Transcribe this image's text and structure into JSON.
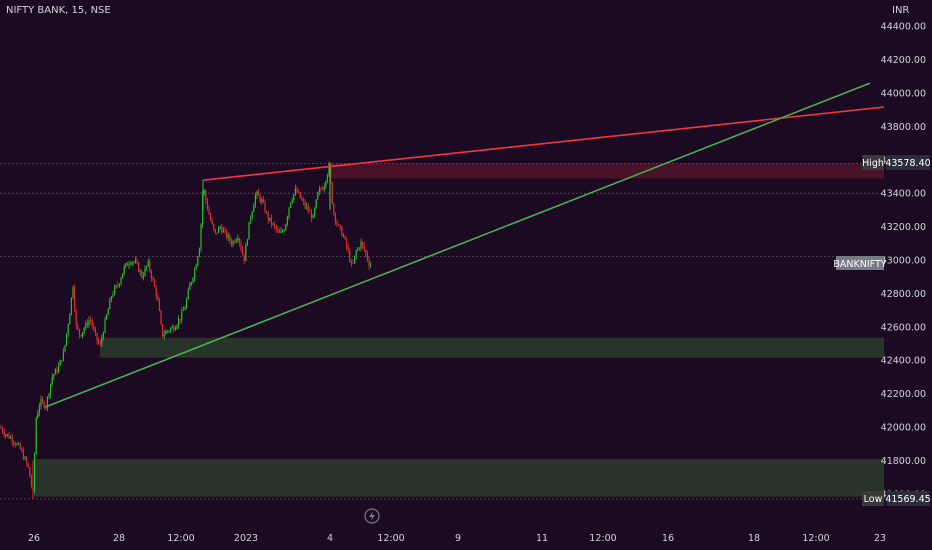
{
  "header": {
    "symbol": "NIFTY BANK, 15, NSE",
    "currency": "INR"
  },
  "colors": {
    "background": "#1c0a22",
    "up": "#26c126",
    "down": "#e03030",
    "resistance": "#f23645",
    "support": "#4caf50"
  },
  "markers": {
    "high_label": "High",
    "high_value": "43578.40",
    "low_label": "Low",
    "low_value": "41569.45",
    "symbol_tag": "BANKNIFTY"
  },
  "chart_data": {
    "type": "candlestick",
    "title": "NIFTY BANK, 15, NSE",
    "ylim": [
      41540,
      44500
    ],
    "y_ticks": [
      44400,
      44200,
      44000,
      43800,
      43600,
      43400,
      43200,
      43000,
      42800,
      42600,
      42400,
      42200,
      42000,
      41800,
      41600
    ],
    "y_tick_labels": [
      "44400.00",
      "44200.00",
      "44000.00",
      "43800.00",
      "43600.00",
      "43400.00",
      "43200.00",
      "43000.00",
      "42800.00",
      "42600.00",
      "42400.00",
      "42200.00",
      "42000.00",
      "41800.00",
      "41600.00"
    ],
    "x_tick_labels": [
      "26",
      "28",
      "12:00",
      "2023",
      "4",
      "12:00",
      "9",
      "11",
      "12:00",
      "16",
      "18",
      "12:00",
      "23"
    ],
    "close_path": [
      [
        0,
        42000
      ],
      [
        5,
        41960
      ],
      [
        12,
        41930
      ],
      [
        20,
        41870
      ],
      [
        28,
        41760
      ],
      [
        33,
        41600
      ],
      [
        36,
        42050
      ],
      [
        40,
        42150
      ],
      [
        46,
        42130
      ],
      [
        52,
        42300
      ],
      [
        58,
        42350
      ],
      [
        64,
        42450
      ],
      [
        70,
        42700
      ],
      [
        73,
        42850
      ],
      [
        76,
        42600
      ],
      [
        80,
        42550
      ],
      [
        85,
        42600
      ],
      [
        90,
        42650
      ],
      [
        95,
        42550
      ],
      [
        100,
        42480
      ],
      [
        104,
        42600
      ],
      [
        108,
        42700
      ],
      [
        112,
        42800
      ],
      [
        118,
        42850
      ],
      [
        124,
        42950
      ],
      [
        130,
        43000
      ],
      [
        136,
        42980
      ],
      [
        142,
        42900
      ],
      [
        148,
        42980
      ],
      [
        154,
        42850
      ],
      [
        158,
        42750
      ],
      [
        162,
        42550
      ],
      [
        168,
        42580
      ],
      [
        174,
        42600
      ],
      [
        180,
        42650
      ],
      [
        185,
        42720
      ],
      [
        190,
        42850
      ],
      [
        195,
        42950
      ],
      [
        200,
        43100
      ],
      [
        203,
        43450
      ],
      [
        206,
        43350
      ],
      [
        210,
        43250
      ],
      [
        215,
        43150
      ],
      [
        220,
        43200
      ],
      [
        226,
        43150
      ],
      [
        232,
        43100
      ],
      [
        238,
        43150
      ],
      [
        244,
        43000
      ],
      [
        250,
        43250
      ],
      [
        256,
        43400
      ],
      [
        262,
        43350
      ],
      [
        268,
        43250
      ],
      [
        274,
        43200
      ],
      [
        280,
        43150
      ],
      [
        285,
        43200
      ],
      [
        290,
        43350
      ],
      [
        296,
        43420
      ],
      [
        302,
        43350
      ],
      [
        308,
        43300
      ],
      [
        313,
        43250
      ],
      [
        318,
        43400
      ],
      [
        324,
        43450
      ],
      [
        329,
        43560
      ],
      [
        333,
        43300
      ],
      [
        338,
        43200
      ],
      [
        343,
        43150
      ],
      [
        348,
        43050
      ],
      [
        352,
        42950
      ],
      [
        356,
        43050
      ],
      [
        361,
        43100
      ],
      [
        365,
        43050
      ],
      [
        369,
        42980
      ],
      [
        372,
        42970
      ]
    ],
    "trendlines": [
      {
        "name": "resistance",
        "from": [
          "26 Dec",
          43478
        ],
        "to": [
          "4 Jan",
          43567
        ],
        "extends_to": [
          "23 Jan",
          43916
        ]
      },
      {
        "name": "support",
        "from": [
          "27 Dec",
          42121
        ],
        "to": [
          "5 Jan",
          42871
        ],
        "extends_to": [
          "23 Jan",
          44059
        ]
      }
    ],
    "zones": [
      {
        "type": "supply",
        "from": 43488,
        "to": 43578,
        "color": "#4a1228"
      },
      {
        "type": "demand",
        "from": 42415,
        "to": 42535,
        "color": "#283429"
      },
      {
        "type": "demand",
        "from": 41583,
        "to": 41808,
        "color": "#283429"
      }
    ],
    "price_lines": [
      43578.4,
      43400,
      43020,
      41569.45
    ],
    "grid": false,
    "legend": "none"
  }
}
